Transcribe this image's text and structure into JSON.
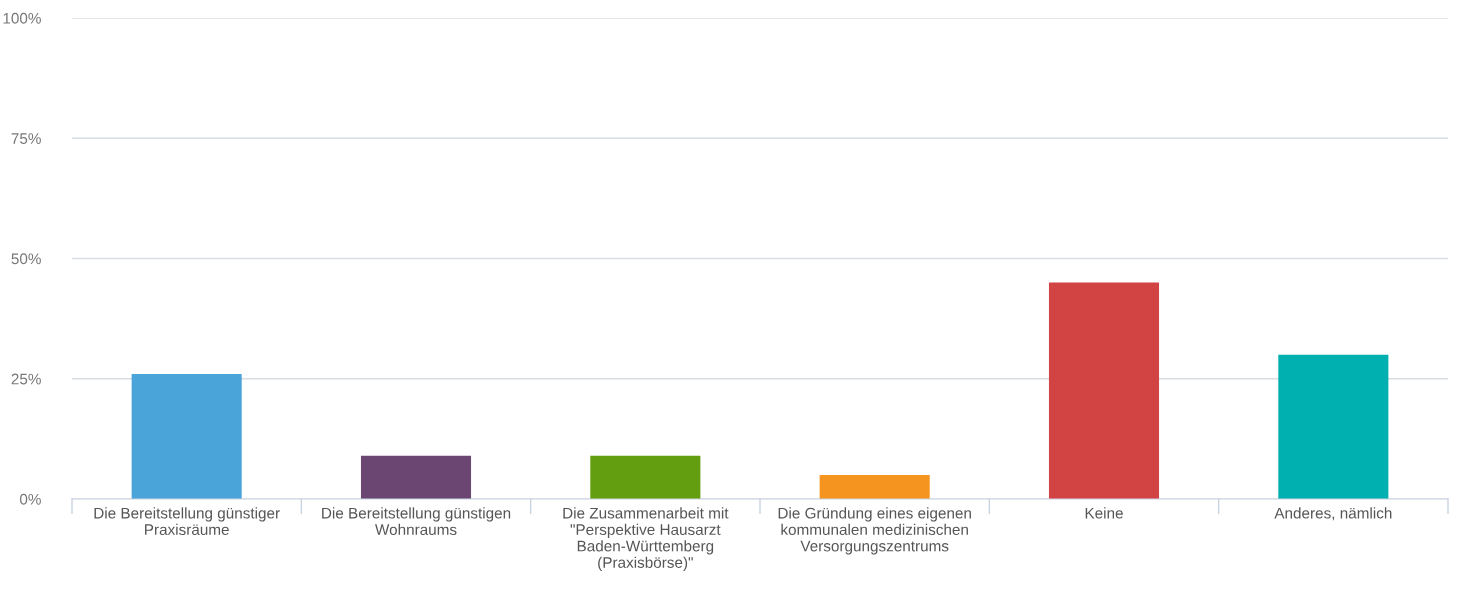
{
  "chart_data": {
    "type": "bar",
    "categories": [
      "Die Bereitstellung günstiger\nPraxisräume",
      "Die Bereitstellung günstigen\nWohnraums",
      "Die Zusammenarbeit mit\n\"Perspektive Hausarzt\nBaden-Württemberg\n(Praxisbörse)\"",
      "Die Gründung eines eigenen\nkommunalen medizinischen\nVersorgungszentrums",
      "Keine",
      "Anderes, nämlich"
    ],
    "values": [
      26,
      9,
      9,
      5,
      45,
      30
    ],
    "colors": [
      "#4aa3d9",
      "#6b4672",
      "#629e0f",
      "#f5951f",
      "#d24343",
      "#00b0b0"
    ],
    "ylim": [
      0,
      100
    ],
    "yticks": [
      {
        "value": 0,
        "label": "0%"
      },
      {
        "value": 25,
        "label": "25%"
      },
      {
        "value": 50,
        "label": "50%"
      },
      {
        "value": 75,
        "label": "75%"
      },
      {
        "value": 100,
        "label": "100%"
      }
    ],
    "grid": "y"
  }
}
